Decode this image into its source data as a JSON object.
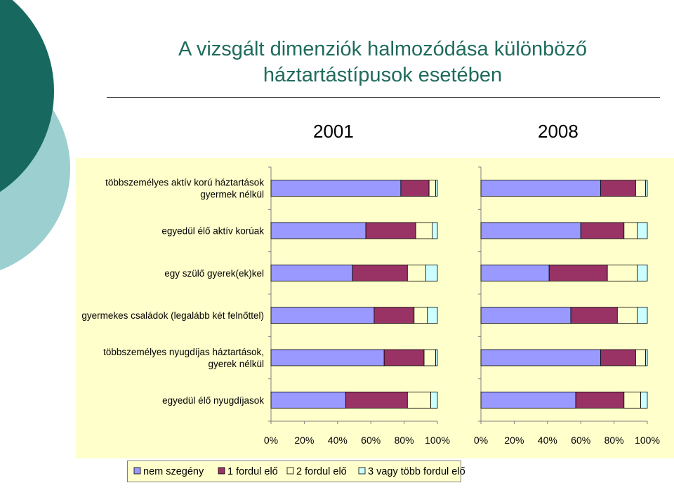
{
  "slide": {
    "title_line1": "A vizsgált dimenziók halmozódása különböző",
    "title_line2": "háztartástípusok esetében"
  },
  "colors": {
    "title": "#1f6b5c",
    "panel_bg": "#ffffcc",
    "deco_dark": "#17695f",
    "deco_light": "#9ccfcf"
  },
  "chart_data": {
    "type": "bar",
    "orientation": "horizontal",
    "stacked": "percent",
    "categories": [
      [
        "többszemélyes aktív korú háztartások",
        "gyermek nélkül"
      ],
      [
        "egyedül élő aktív korúak"
      ],
      [
        "egy szülő gyerek(ek)kel"
      ],
      [
        "gyermekes családok (legalább két felnőttel)"
      ],
      [
        "többszemélyes nyugdíjas háztartások,",
        "gyerek nélkül"
      ],
      [
        "egyedül élő nyugdíjasok"
      ]
    ],
    "xlim": [
      0,
      100
    ],
    "xticks": [
      "0%",
      "20%",
      "40%",
      "60%",
      "80%",
      "100%"
    ],
    "legend_position": "bottom",
    "series_colors": [
      "#9999ff",
      "#993366",
      "#ffffcc",
      "#ccffff"
    ],
    "series_names": [
      "nem szegény",
      "1 fordul elő",
      "2 fordul elő",
      "3 vagy több fordul elő"
    ],
    "panels": [
      {
        "year": "2001",
        "series": [
          {
            "name": "nem szegény",
            "values": [
              78,
              57,
              49,
              62,
              68,
              45
            ]
          },
          {
            "name": "1 fordul elő",
            "values": [
              17,
              30,
              33,
              24,
              24,
              37
            ]
          },
          {
            "name": "2 fordul elő",
            "values": [
              4,
              10,
              11,
              8,
              7,
              14
            ]
          },
          {
            "name": "3 vagy több fordul elő",
            "values": [
              1,
              3,
              7,
              6,
              1,
              4
            ]
          }
        ]
      },
      {
        "year": "2008",
        "series": [
          {
            "name": "nem szegény",
            "values": [
              72,
              60,
              41,
              54,
              72,
              57
            ]
          },
          {
            "name": "1 fordul elő",
            "values": [
              21,
              26,
              35,
              28,
              21,
              29
            ]
          },
          {
            "name": "2 fordul elő",
            "values": [
              6,
              8,
              18,
              12,
              6,
              10
            ]
          },
          {
            "name": "3 vagy több fordul elő",
            "values": [
              1,
              6,
              6,
              6,
              1,
              4
            ]
          }
        ]
      }
    ]
  }
}
